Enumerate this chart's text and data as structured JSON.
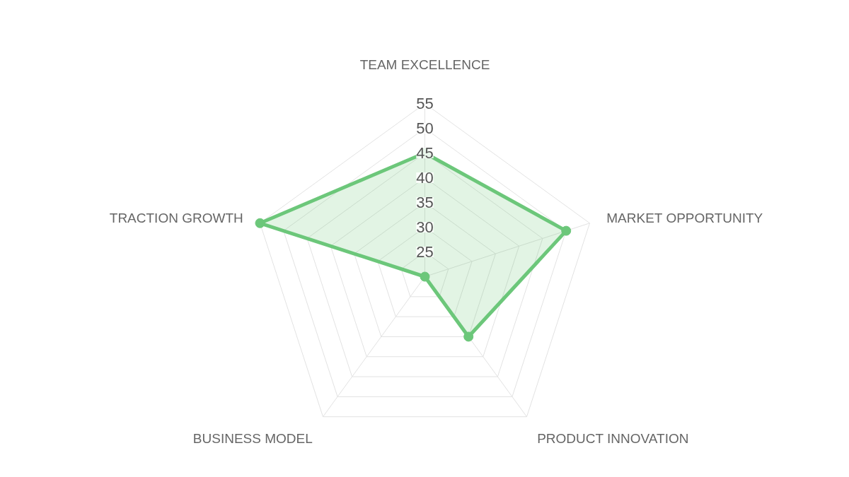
{
  "chart_data": {
    "type": "radar",
    "categories": [
      "TEAM EXCELLENCE",
      "MARKET OPPORTUNITY",
      "PRODUCT INNOVATION",
      "BUSINESS MODEL",
      "TRACTION GROWTH"
    ],
    "series": [
      {
        "color": "#6cc77a",
        "values": [
          45,
          50,
          35,
          20,
          55
        ]
      }
    ],
    "ylim": [
      20,
      55
    ],
    "yticks": [
      25,
      30,
      35,
      40,
      45,
      50,
      55
    ],
    "grid": true,
    "marker": "circle",
    "line_style": "solid"
  }
}
